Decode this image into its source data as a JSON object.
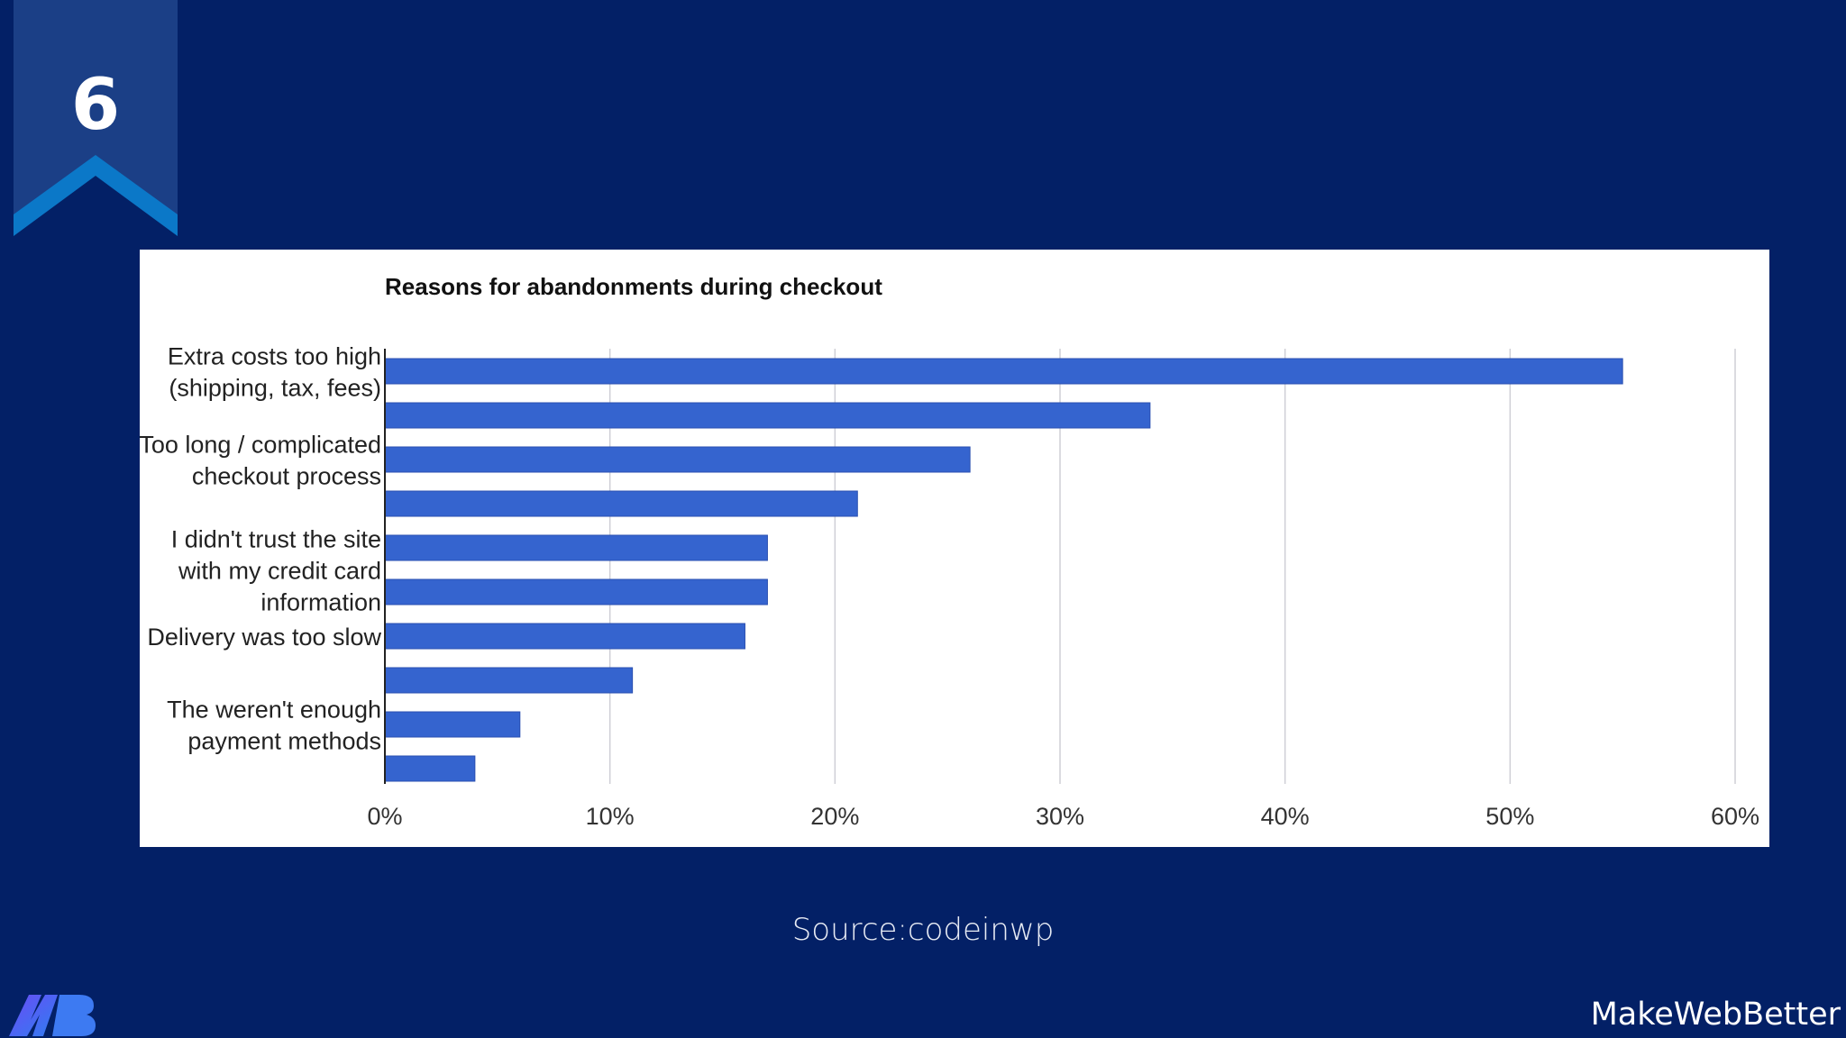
{
  "slide": {
    "number": "6",
    "source": "Source:codeinwp",
    "brand": "MakeWebBetter",
    "background_color": "#032066",
    "ribbon_color": "#1b3f86",
    "ribbon_accent_color": "#0b78c8",
    "logo_icon": "makewebbetter-logo-icon"
  },
  "chart_data": {
    "type": "bar",
    "orientation": "horizontal",
    "title": "Reasons for abandonments during checkout",
    "bar_color": "#3564cf",
    "values": [
      55,
      34,
      26,
      21,
      17,
      17,
      16,
      11,
      6,
      4
    ],
    "category_labels": [
      [
        "Extra costs too high",
        "(shipping, tax, fees)"
      ],
      [],
      [
        "Too long / complicated",
        "checkout process"
      ],
      [],
      [
        "I didn't trust the site",
        "with my credit card",
        "information"
      ],
      [],
      [
        "Delivery was too slow"
      ],
      [],
      [
        "The weren't enough",
        "payment methods"
      ],
      []
    ],
    "xlim": [
      0,
      60
    ],
    "x_ticks": [
      "0%",
      "10%",
      "20%",
      "30%",
      "40%",
      "50%",
      "60%"
    ],
    "grid": true,
    "legend": "none"
  }
}
